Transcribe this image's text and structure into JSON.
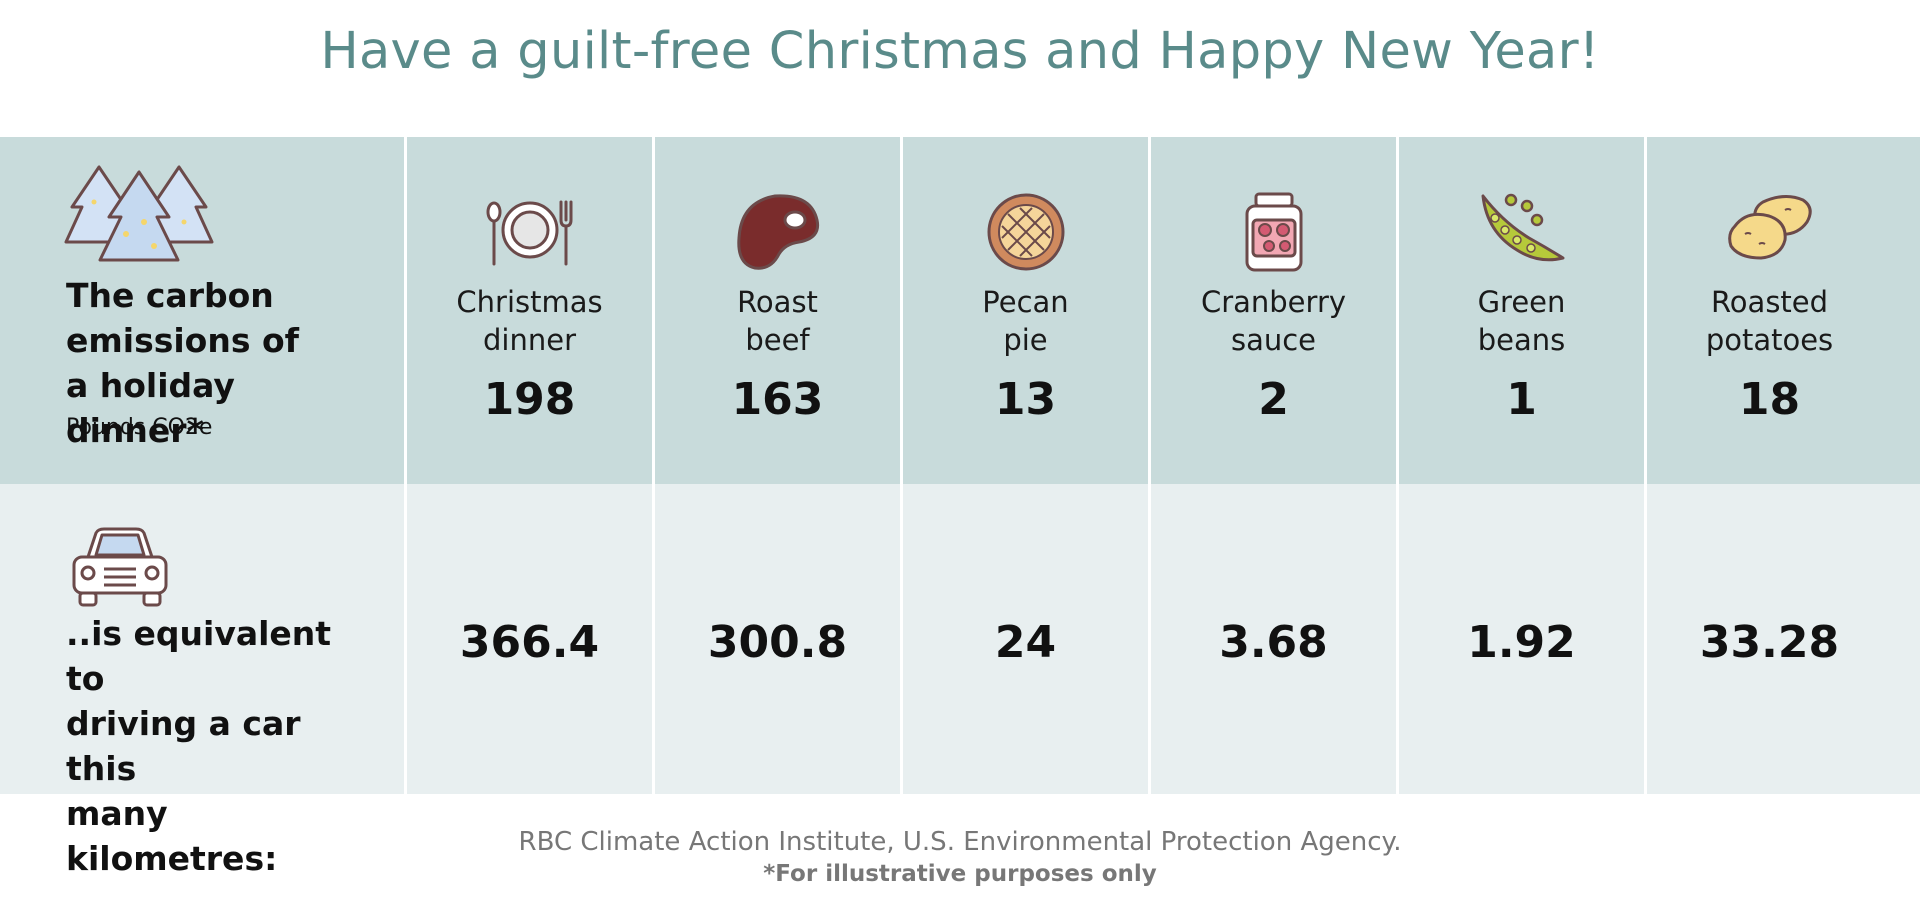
{
  "title": "Have a guilt-free Christmas and Happy New Year!",
  "row_emissions": {
    "label_lines": [
      "The carbon",
      "emissions of",
      "a holiday dinner*"
    ],
    "unit": "Pounds CO2e",
    "icon": "christmas-trees-icon"
  },
  "row_km": {
    "label_lines": [
      "..is equivalent to",
      "driving a car this",
      "many kilometres:"
    ],
    "icon": "car-icon"
  },
  "chart_data": {
    "type": "table",
    "columns": [
      {
        "label_lines": [
          "Christmas",
          "dinner"
        ],
        "icon": "plate-cutlery-icon",
        "emissions": 198,
        "km": 366.4,
        "emissions_text": "198",
        "km_text": "366.4"
      },
      {
        "label_lines": [
          "Roast",
          "beef"
        ],
        "icon": "steak-icon",
        "emissions": 163,
        "km": 300.8,
        "emissions_text": "163",
        "km_text": "300.8"
      },
      {
        "label_lines": [
          "Pecan",
          "pie"
        ],
        "icon": "pie-icon",
        "emissions": 13,
        "km": 24,
        "emissions_text": "13",
        "km_text": "24"
      },
      {
        "label_lines": [
          "Cranberry",
          "sauce"
        ],
        "icon": "jar-icon",
        "emissions": 2,
        "km": 3.68,
        "emissions_text": "2",
        "km_text": "3.68"
      },
      {
        "label_lines": [
          "Green",
          "beans"
        ],
        "icon": "pea-pod-icon",
        "emissions": 1,
        "km": 1.92,
        "emissions_text": "1",
        "km_text": "1.92"
      },
      {
        "label_lines": [
          "Roasted",
          "potatoes"
        ],
        "icon": "potatoes-icon",
        "emissions": 18,
        "km": 33.28,
        "emissions_text": "18",
        "km_text": "33.28"
      }
    ]
  },
  "source": "RBC Climate Action Institute, U.S. Environmental Protection Agency.",
  "note": "*For illustrative purposes only",
  "colors": {
    "title": "#5a8b8a",
    "top_row_bg": "#c8dbdb",
    "bottom_row_bg": "#e8eff0",
    "icon_stroke": "#6b4a4a"
  }
}
